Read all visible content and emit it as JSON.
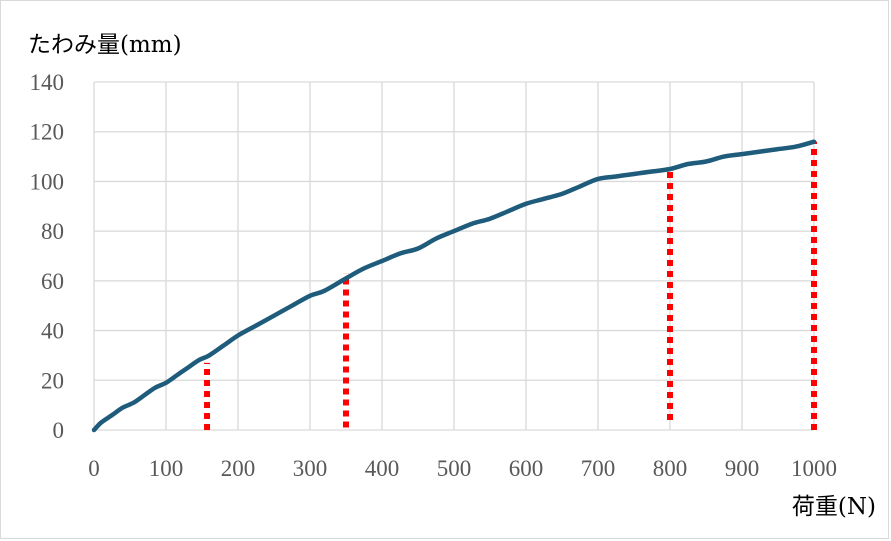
{
  "chart_data": {
    "type": "line",
    "title": "",
    "xlabel": "荷重(N)",
    "ylabel": "たわみ量(mm)",
    "xlim": [
      0,
      1000
    ],
    "ylim": [
      0,
      140
    ],
    "x_ticks": [
      "0",
      "100",
      "200",
      "300",
      "400",
      "500",
      "600",
      "700",
      "800",
      "900",
      "1000"
    ],
    "y_ticks": [
      "0",
      "20",
      "40",
      "60",
      "80",
      "100",
      "120",
      "140"
    ],
    "grid": true,
    "legend": "none",
    "series": [
      {
        "color": "#1f5c7c",
        "x": [
          0,
          10,
          25,
          40,
          55,
          70,
          85,
          100,
          115,
          130,
          145,
          160,
          180,
          200,
          225,
          250,
          275,
          300,
          320,
          350,
          375,
          400,
          425,
          450,
          475,
          500,
          525,
          550,
          575,
          600,
          625,
          650,
          675,
          700,
          725,
          750,
          775,
          800,
          825,
          850,
          875,
          900,
          925,
          950,
          975,
          1000
        ],
        "y": [
          0,
          3,
          6,
          9,
          11,
          14,
          17,
          19,
          22,
          25,
          28,
          30,
          34,
          38,
          42,
          46,
          50,
          54,
          56,
          61,
          65,
          68,
          71,
          73,
          77,
          80,
          83,
          85,
          88,
          91,
          93,
          95,
          98,
          101,
          102,
          103,
          104,
          105,
          107,
          108,
          110,
          111,
          112,
          113,
          114,
          116
        ]
      }
    ],
    "markers": {
      "color": "#ff0000",
      "style": "dotted",
      "lines": [
        {
          "x": 157,
          "y_from": 0,
          "y_to": 27
        },
        {
          "x": 350,
          "y_from": 1,
          "y_to": 63
        },
        {
          "x": 800,
          "y_from": 4,
          "y_to": 104
        },
        {
          "x": 1000,
          "y_from": 0,
          "y_to": 116
        }
      ]
    },
    "colors": {
      "grid": "#d9d9d9",
      "tick_text": "#595959"
    }
  }
}
